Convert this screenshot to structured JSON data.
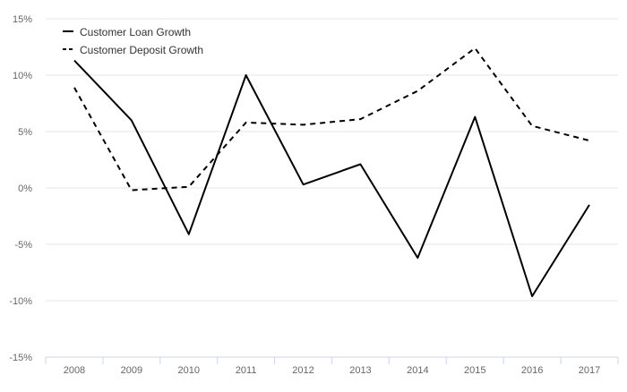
{
  "chart_data": {
    "type": "line",
    "categories": [
      "2008",
      "2009",
      "2010",
      "2011",
      "2012",
      "2013",
      "2014",
      "2015",
      "2016",
      "2017"
    ],
    "ylim": [
      -15,
      15
    ],
    "yticks": [
      15,
      10,
      5,
      0,
      -5,
      -10,
      -15
    ],
    "ytick_labels": [
      "15%",
      "10%",
      "5%",
      "0%",
      "-5%",
      "-10%",
      "-15%"
    ],
    "grid": true,
    "legend_position": "top-left",
    "series": [
      {
        "name": "Customer Loan Growth",
        "values": [
          11.3,
          6.0,
          -4.1,
          10.0,
          0.3,
          2.1,
          -6.2,
          6.3,
          -9.6,
          -1.5
        ],
        "style": "solid",
        "color": "#000000"
      },
      {
        "name": "Customer Deposit Growth",
        "values": [
          8.9,
          -0.2,
          0.1,
          5.8,
          5.6,
          6.1,
          8.6,
          12.4,
          5.5,
          4.2
        ],
        "style": "dashed",
        "color": "#000000"
      }
    ],
    "colors": {
      "grid": "#e6e6e6",
      "axis": "#ccd6eb",
      "tick_text": "#666666",
      "legend_text": "#333333"
    }
  }
}
